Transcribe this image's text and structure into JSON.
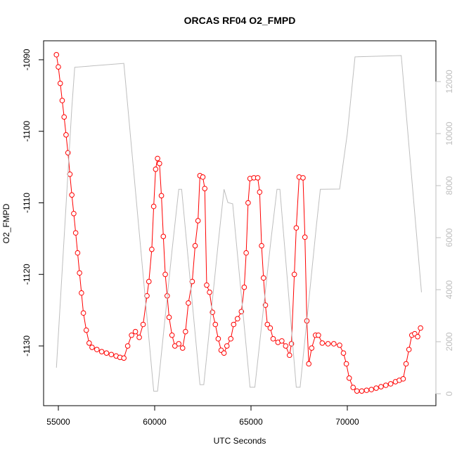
{
  "chart_data": {
    "type": "line",
    "title": "ORCAS RF04 O2_FMPD",
    "x_label": "UTC Seconds",
    "y_label": "O2_FMPD",
    "xlim": [
      54234,
      74599
    ],
    "ylim": [
      -1138.35,
      -1087.35
    ],
    "y2lim": [
      -459,
      13568
    ],
    "xticks": [
      55000,
      60000,
      65000,
      70000
    ],
    "yticks": [
      -1090,
      -1100,
      -1110,
      -1120,
      -1130
    ],
    "y2ticks": [
      0,
      2000,
      4000,
      6000,
      8000,
      10000,
      12000
    ],
    "series": [
      {
        "color": "#ff0000",
        "markers": true,
        "axis": "y",
        "x": [
          54900,
          55000,
          55100,
          55200,
          55300,
          55400,
          55500,
          55600,
          55700,
          55800,
          55900,
          56000,
          56100,
          56200,
          56300,
          56450,
          56600,
          56750,
          57000,
          57250,
          57500,
          57750,
          58000,
          58200,
          58400,
          58600,
          58800,
          59000,
          59200,
          59400,
          59600,
          59700,
          59850,
          59950,
          60050,
          60150,
          60250,
          60350,
          60450,
          60550,
          60650,
          60750,
          60900,
          61050,
          61250,
          61450,
          61600,
          61750,
          61950,
          62100,
          62250,
          62350,
          62500,
          62600,
          62700,
          62850,
          63000,
          63150,
          63300,
          63450,
          63600,
          63750,
          63950,
          64100,
          64300,
          64500,
          64650,
          64750,
          64850,
          64950,
          65150,
          65350,
          65450,
          65550,
          65650,
          65750,
          65850,
          66000,
          66150,
          66400,
          66600,
          66800,
          67000,
          67100,
          67250,
          67350,
          67500,
          67700,
          67800,
          67900,
          68000,
          68150,
          68350,
          68500,
          68700,
          69000,
          69300,
          69600,
          69800,
          69950,
          70100,
          70300,
          70500,
          70750,
          71000,
          71250,
          71500,
          71750,
          72000,
          72250,
          72500,
          72700,
          72900,
          73050,
          73200,
          73350,
          73500,
          73650,
          73800
        ],
        "values": [
          -1089.3,
          -1091,
          -1093.3,
          -1095.7,
          -1098,
          -1100.5,
          -1103,
          -1106,
          -1108.9,
          -1111.5,
          -1114.2,
          -1117,
          -1119.8,
          -1122.6,
          -1125.4,
          -1127.8,
          -1129.6,
          -1130.2,
          -1130.5,
          -1130.8,
          -1131,
          -1131.2,
          -1131.4,
          -1131.6,
          -1131.7,
          -1130,
          -1128.5,
          -1128,
          -1128.8,
          -1127,
          -1123,
          -1121,
          -1116.5,
          -1110.5,
          -1105.3,
          -1103.8,
          -1104.5,
          -1109,
          -1114.7,
          -1120,
          -1123,
          -1126,
          -1128.5,
          -1130,
          -1129.7,
          -1130.3,
          -1128,
          -1124,
          -1121,
          -1116,
          -1112.5,
          -1106.2,
          -1106.4,
          -1108,
          -1121.5,
          -1122.5,
          -1125.3,
          -1127,
          -1129,
          -1130.6,
          -1131,
          -1130,
          -1129,
          -1127,
          -1126.2,
          -1125.2,
          -1121.8,
          -1117,
          -1110,
          -1106.6,
          -1106.5,
          -1106.5,
          -1108.5,
          -1116,
          -1120.5,
          -1124.3,
          -1127,
          -1127.5,
          -1129,
          -1129.5,
          -1129.3,
          -1130,
          -1131.3,
          -1129.7,
          -1120,
          -1113.5,
          -1106.4,
          -1106.5,
          -1114.8,
          -1126.5,
          -1132.5,
          -1130.3,
          -1128.5,
          -1128.5,
          -1129.6,
          -1129.7,
          -1129.7,
          -1129.9,
          -1131,
          -1132.5,
          -1134.5,
          -1135.8,
          -1136.3,
          -1136.3,
          -1136.2,
          -1136.1,
          -1135.9,
          -1135.7,
          -1135.5,
          -1135.3,
          -1135,
          -1134.8,
          -1134.6,
          -1132.5,
          -1130.5,
          -1128.5,
          -1128.3,
          -1128.7,
          -1127.5
        ]
      },
      {
        "color": "#bebebe",
        "markers": false,
        "axis": "y2",
        "x": [
          54900,
          55700,
          55850,
          58400,
          59950,
          60150,
          60900,
          61250,
          61400,
          62350,
          62550,
          63300,
          63600,
          63800,
          64050,
          64950,
          65200,
          66050,
          66350,
          66500,
          67350,
          67550,
          68400,
          68600,
          69600,
          70000,
          70400,
          72800,
          73850
        ],
        "values": [
          1000,
          11000,
          12550,
          12700,
          100,
          100,
          5500,
          7860,
          7860,
          350,
          350,
          5800,
          7860,
          7350,
          7300,
          250,
          250,
          6000,
          7860,
          7860,
          250,
          250,
          6500,
          7860,
          7870,
          10000,
          12950,
          13000,
          3900
        ]
      }
    ]
  }
}
